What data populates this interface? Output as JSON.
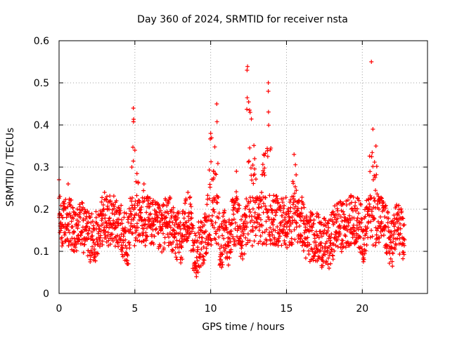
{
  "chart_data": {
    "type": "scatter",
    "title": "Day 360 of 2024, SRMTID for receiver nsta",
    "xlabel": "GPS time / hours",
    "ylabel": "SRMTID / TECUs",
    "xlim": [
      0,
      24.3
    ],
    "ylim": [
      0,
      0.6
    ],
    "xticks": [
      0,
      5,
      10,
      15,
      20
    ],
    "xtick_labels": [
      "0",
      "5",
      "10",
      "15",
      "20"
    ],
    "yticks": [
      0,
      0.1,
      0.2,
      0.3,
      0.4,
      0.5,
      0.6
    ],
    "ytick_labels": [
      "0",
      "0.1",
      "0.2",
      "0.3",
      "0.4",
      "0.5",
      "0.6"
    ],
    "grid": true,
    "marker": "+",
    "color": "#ff0000",
    "data_start_hour": 0,
    "data_end_hour": 22.8,
    "series": [
      {
        "name": "SRMTID",
        "description_profile": "dense scatter; baseline 0.05-0.25 TECU with spikes near 4.9h, 10.3h, 12.4h, 13.8h, 20.6h",
        "x": [
          0.0,
          0.05,
          0.3,
          0.6,
          0.7,
          1.0,
          1.3,
          1.8,
          2.3,
          2.8,
          3.0,
          3.3,
          3.8,
          4.2,
          4.6,
          4.8,
          4.9,
          5.0,
          5.3,
          5.6,
          6.2,
          6.7,
          7.2,
          7.6,
          8.1,
          8.5,
          8.9,
          9.3,
          9.7,
          10.0,
          10.2,
          10.4,
          10.6,
          10.9,
          11.2,
          11.5,
          11.7,
          12.0,
          12.3,
          12.4,
          12.6,
          12.9,
          13.2,
          13.5,
          13.8,
          14.1,
          14.5,
          14.9,
          15.2,
          15.5,
          15.8,
          16.3,
          16.8,
          17.3,
          17.8,
          18.3,
          18.8,
          19.3,
          19.8,
          20.1,
          20.4,
          20.6,
          20.7,
          20.9,
          21.1,
          21.5,
          21.9,
          22.3,
          22.7
        ],
        "y": [
          0.27,
          0.19,
          0.16,
          0.26,
          0.19,
          0.13,
          0.17,
          0.15,
          0.12,
          0.19,
          0.24,
          0.2,
          0.17,
          0.15,
          0.12,
          0.3,
          0.44,
          0.34,
          0.22,
          0.26,
          0.17,
          0.15,
          0.19,
          0.14,
          0.13,
          0.24,
          0.07,
          0.12,
          0.13,
          0.38,
          0.29,
          0.45,
          0.08,
          0.15,
          0.12,
          0.22,
          0.29,
          0.12,
          0.16,
          0.53,
          0.43,
          0.32,
          0.18,
          0.33,
          0.48,
          0.22,
          0.2,
          0.18,
          0.16,
          0.33,
          0.22,
          0.13,
          0.14,
          0.12,
          0.11,
          0.17,
          0.16,
          0.2,
          0.17,
          0.13,
          0.2,
          0.55,
          0.39,
          0.35,
          0.2,
          0.16,
          0.11,
          0.17,
          0.13
        ]
      }
    ]
  }
}
